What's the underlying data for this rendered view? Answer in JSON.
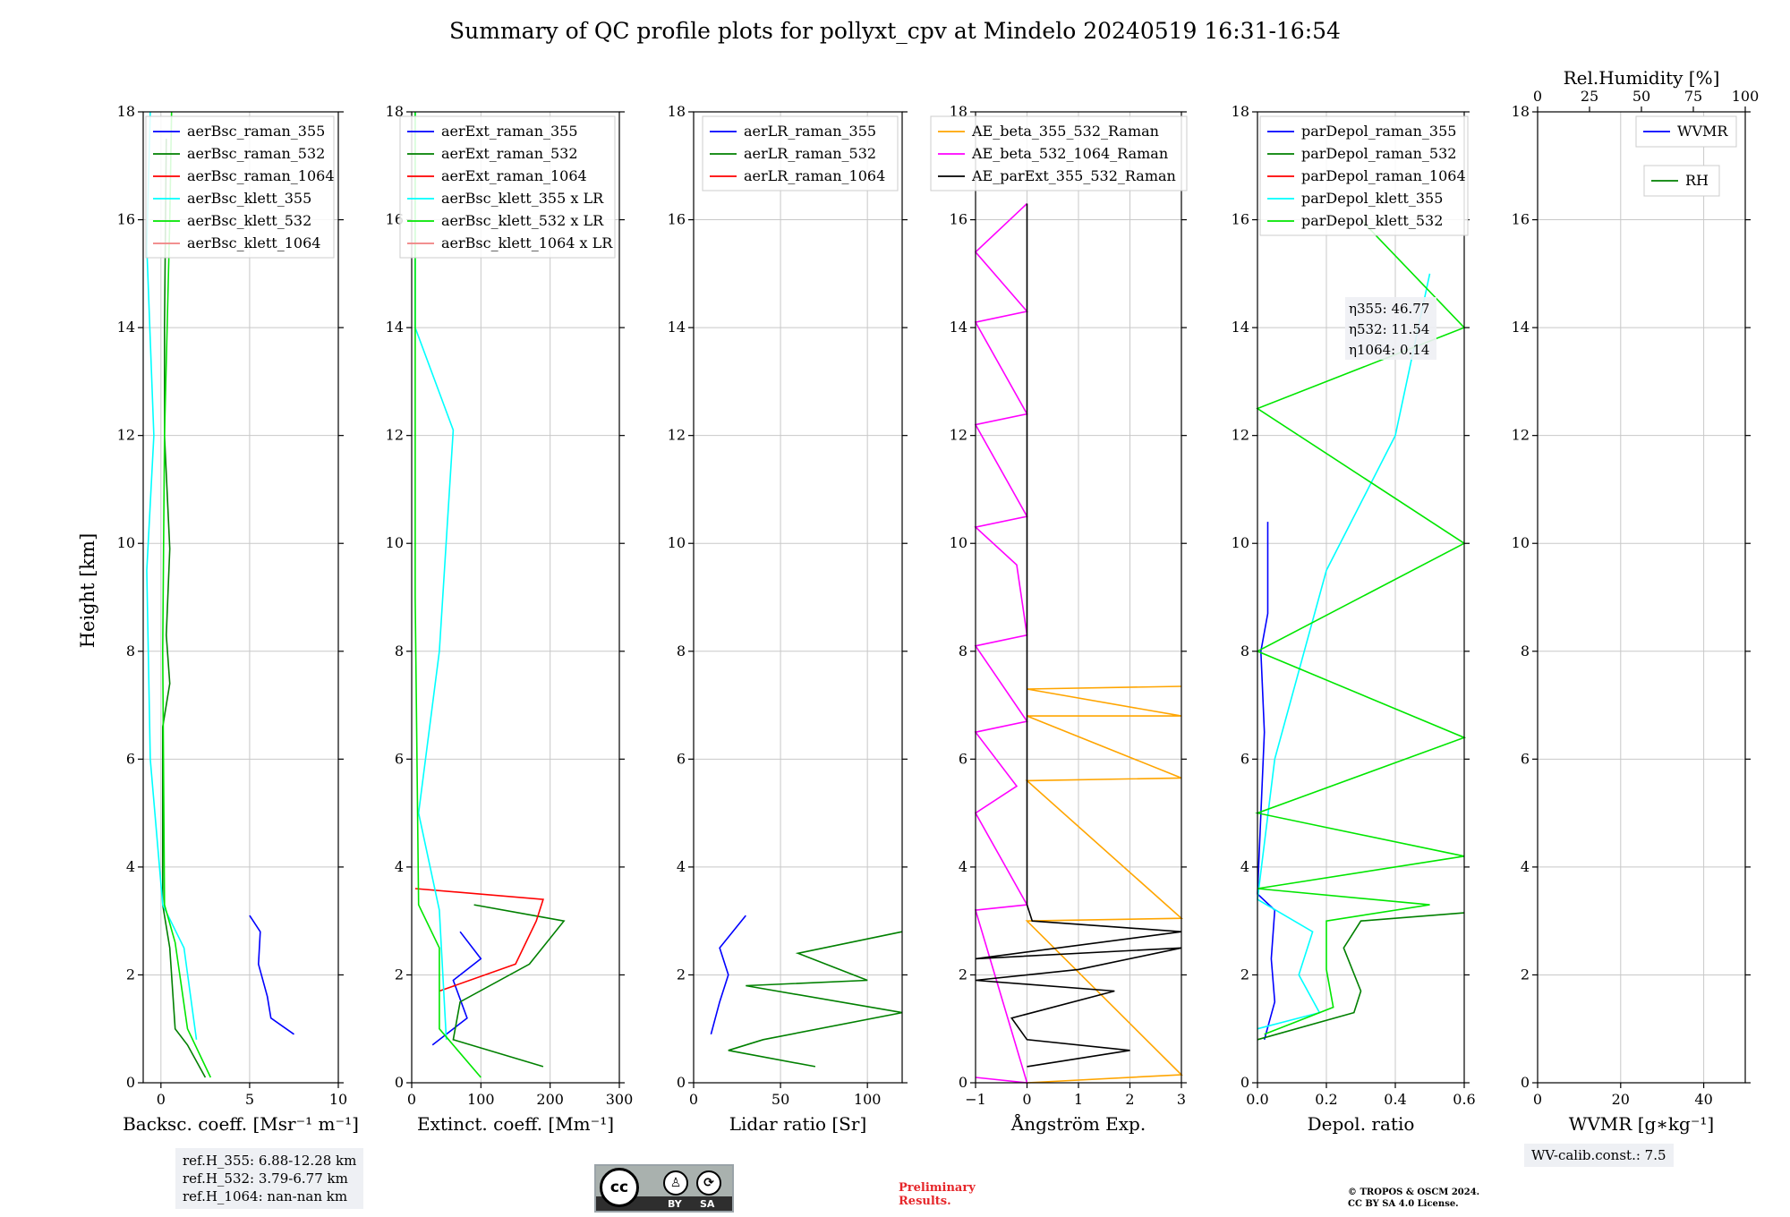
{
  "title": "Summary of QC profile plots for pollyxt_cpv at Mindelo 20240519 16:31-16:54",
  "y_axis_label": "Height [km]",
  "chart_data": [
    {
      "type": "line",
      "panel": "backscatter",
      "xlabel": "Backsc. coeff. [Msr⁻¹ m⁻¹]",
      "xlim": [
        -1,
        10
      ],
      "ylim": [
        0,
        18
      ],
      "xticks": [
        0,
        5,
        10
      ],
      "yticks": [
        0,
        2,
        4,
        6,
        8,
        10,
        12,
        14,
        16,
        18
      ],
      "grid": true,
      "legend_position": "top-right",
      "series": [
        {
          "name": "aerBsc_raman_355",
          "color": "#0000ff",
          "points": [
            [
              5,
              3.1
            ],
            [
              5.6,
              2.8
            ],
            [
              5.5,
              2.2
            ],
            [
              6,
              1.6
            ],
            [
              6.2,
              1.2
            ],
            [
              7.5,
              0.9
            ]
          ]
        },
        {
          "name": "aerBsc_raman_532",
          "color": "#008000",
          "points": [
            [
              2.5,
              0.1
            ],
            [
              1.5,
              0.7
            ],
            [
              0.8,
              1.0
            ],
            [
              0.5,
              2.5
            ],
            [
              0.1,
              3.3
            ],
            [
              0.1,
              6.6
            ],
            [
              0.5,
              7.4
            ],
            [
              0.3,
              8.3
            ],
            [
              0.5,
              9.9
            ],
            [
              0.2,
              12.0
            ],
            [
              0.2,
              14.0
            ],
            [
              0.3,
              17.5
            ]
          ]
        },
        {
          "name": "aerBsc_raman_1064",
          "color": "#ff0000",
          "points": []
        },
        {
          "name": "aerBsc_klett_355",
          "color": "#00ffff",
          "points": [
            [
              2.0,
              0.8
            ],
            [
              1.3,
              2.5
            ],
            [
              0.1,
              3.3
            ],
            [
              -0.6,
              6.0
            ],
            [
              -0.8,
              9.5
            ],
            [
              -0.4,
              12.0
            ],
            [
              -0.8,
              15.5
            ],
            [
              -0.6,
              18.0
            ]
          ]
        },
        {
          "name": "aerBsc_klett_532",
          "color": "#00e600",
          "points": [
            [
              2.8,
              0.1
            ],
            [
              1.5,
              1.0
            ],
            [
              0.8,
              2.6
            ],
            [
              0.2,
              3.3
            ],
            [
              0.1,
              8.0
            ],
            [
              0.2,
              12.0
            ],
            [
              0.5,
              16.0
            ],
            [
              0.6,
              18.0
            ]
          ]
        },
        {
          "name": "aerBsc_klett_1064",
          "color": "#f08080",
          "points": []
        }
      ]
    },
    {
      "type": "line",
      "panel": "extinction",
      "xlabel": "Extinct. coeff. [Mm⁻¹]",
      "xlim": [
        0,
        300
      ],
      "ylim": [
        0,
        18
      ],
      "xticks": [
        0,
        100,
        200,
        300
      ],
      "yticks": [
        0,
        2,
        4,
        6,
        8,
        10,
        12,
        14,
        16,
        18
      ],
      "grid": true,
      "legend_position": "top-right",
      "series": [
        {
          "name": "aerExt_raman_355",
          "color": "#0000ff",
          "points": [
            [
              30,
              0.7
            ],
            [
              80,
              1.2
            ],
            [
              60,
              1.9
            ],
            [
              100,
              2.3
            ],
            [
              70,
              2.8
            ]
          ]
        },
        {
          "name": "aerExt_raman_532",
          "color": "#008000",
          "points": [
            [
              190,
              0.3
            ],
            [
              60,
              0.8
            ],
            [
              70,
              1.5
            ],
            [
              170,
              2.2
            ],
            [
              220,
              3.0
            ],
            [
              90,
              3.3
            ]
          ]
        },
        {
          "name": "aerExt_raman_1064",
          "color": "#ff0000",
          "points": [
            [
              40,
              1.7
            ],
            [
              150,
              2.2
            ],
            [
              180,
              3.0
            ],
            [
              190,
              3.4
            ],
            [
              5,
              3.6
            ]
          ]
        },
        {
          "name": "aerBsc_klett_355 x LR",
          "color": "#00ffff",
          "points": [
            [
              50,
              0.8
            ],
            [
              40,
              3.2
            ],
            [
              10,
              5.0
            ],
            [
              40,
              8.0
            ],
            [
              60,
              12.1
            ],
            [
              5,
              14.0
            ],
            [
              5,
              18.0
            ]
          ]
        },
        {
          "name": "aerBsc_klett_532 x LR",
          "color": "#00e600",
          "points": [
            [
              100,
              0.1
            ],
            [
              40,
              1.0
            ],
            [
              40,
              2.5
            ],
            [
              10,
              3.3
            ],
            [
              5,
              9.0
            ],
            [
              5,
              18.0
            ]
          ]
        },
        {
          "name": "aerBsc_klett_1064 x LR",
          "color": "#f08080",
          "points": []
        }
      ]
    },
    {
      "type": "line",
      "panel": "lidar_ratio",
      "xlabel": "Lidar ratio [Sr]",
      "xlim": [
        0,
        120
      ],
      "ylim": [
        0,
        18
      ],
      "xticks": [
        0,
        50,
        100
      ],
      "yticks": [
        0,
        2,
        4,
        6,
        8,
        10,
        12,
        14,
        16,
        18
      ],
      "grid": true,
      "legend_position": "top-right",
      "series": [
        {
          "name": "aerLR_raman_355",
          "color": "#0000ff",
          "points": [
            [
              10,
              0.9
            ],
            [
              15,
              1.5
            ],
            [
              20,
              2.0
            ],
            [
              15,
              2.5
            ],
            [
              30,
              3.1
            ]
          ]
        },
        {
          "name": "aerLR_raman_532",
          "color": "#008000",
          "points": [
            [
              70,
              0.3
            ],
            [
              20,
              0.6
            ],
            [
              40,
              0.8
            ],
            [
              120,
              1.3
            ],
            [
              30,
              1.8
            ],
            [
              100,
              1.9
            ],
            [
              60,
              2.4
            ],
            [
              120,
              2.8
            ]
          ]
        },
        {
          "name": "aerLR_raman_1064",
          "color": "#ff0000",
          "points": []
        }
      ]
    },
    {
      "type": "line",
      "panel": "angstrom",
      "xlabel": "Ångström Exp.",
      "xlim": [
        -1,
        3
      ],
      "ylim": [
        0,
        18
      ],
      "xticks": [
        -1,
        0,
        1,
        2,
        3
      ],
      "yticks": [
        0,
        2,
        4,
        6,
        8,
        10,
        12,
        14,
        16,
        18
      ],
      "grid": true,
      "legend_position": "top",
      "series": [
        {
          "name": "AE_beta_355_532_Raman",
          "color": "#ffa500",
          "points": [
            [
              0,
              0
            ],
            [
              3,
              0.15
            ],
            [
              0,
              3.0
            ],
            [
              3,
              3.05
            ],
            [
              0,
              5.6
            ],
            [
              3,
              5.65
            ],
            [
              0,
              6.8
            ],
            [
              3,
              6.8
            ],
            [
              0,
              7.3
            ],
            [
              3,
              7.35
            ]
          ]
        },
        {
          "name": "AE_beta_532_1064_Raman",
          "color": "#ff00ff",
          "points": [
            [
              -1,
              0.1
            ],
            [
              0,
              0.0
            ],
            [
              -1,
              3.2
            ],
            [
              0,
              3.3
            ],
            [
              -1,
              5.0
            ],
            [
              -0.2,
              5.5
            ],
            [
              -1,
              6.5
            ],
            [
              0,
              6.7
            ],
            [
              -1,
              8.1
            ],
            [
              0,
              8.3
            ],
            [
              -0.2,
              9.6
            ],
            [
              -1,
              10.3
            ],
            [
              0,
              10.5
            ],
            [
              -1,
              12.2
            ],
            [
              0,
              12.4
            ],
            [
              -1,
              14.1
            ],
            [
              0,
              14.3
            ],
            [
              -1,
              15.4
            ],
            [
              0,
              16.3
            ]
          ]
        },
        {
          "name": "AE_parExt_355_532_Raman",
          "color": "#000000",
          "points": [
            [
              0,
              0.3
            ],
            [
              2,
              0.6
            ],
            [
              0,
              0.8
            ],
            [
              -0.3,
              1.2
            ],
            [
              1.7,
              1.7
            ],
            [
              -1,
              1.9
            ],
            [
              1,
              2.1
            ],
            [
              3,
              2.5
            ],
            [
              -1,
              2.3
            ],
            [
              3,
              2.8
            ],
            [
              0.1,
              3.0
            ],
            [
              0,
              3.3
            ],
            [
              0,
              16.3
            ]
          ]
        }
      ]
    },
    {
      "type": "line",
      "panel": "depol",
      "xlabel": "Depol. ratio",
      "xlim": [
        0,
        0.6
      ],
      "ylim": [
        0,
        18
      ],
      "xticks": [
        0.0,
        0.2,
        0.4,
        0.6
      ],
      "yticks": [
        0,
        2,
        4,
        6,
        8,
        10,
        12,
        14,
        16,
        18
      ],
      "grid": true,
      "legend_position": "top-left",
      "series": [
        {
          "name": "parDepol_raman_355",
          "color": "#0000ff",
          "points": [
            [
              0.02,
              0.8
            ],
            [
              0.05,
              1.5
            ],
            [
              0.04,
              2.3
            ],
            [
              0.05,
              3.2
            ],
            [
              0.0,
              3.5
            ],
            [
              0.02,
              6.5
            ],
            [
              0.01,
              8.0
            ],
            [
              0.03,
              8.7
            ],
            [
              0.03,
              10.4
            ]
          ]
        },
        {
          "name": "parDepol_raman_532",
          "color": "#008000",
          "points": [
            [
              0.0,
              0.8
            ],
            [
              0.28,
              1.3
            ],
            [
              0.3,
              1.7
            ],
            [
              0.25,
              2.5
            ],
            [
              0.3,
              3.0
            ],
            [
              0.6,
              3.15
            ]
          ]
        },
        {
          "name": "parDepol_raman_1064",
          "color": "#ff0000",
          "points": []
        },
        {
          "name": "parDepol_klett_355",
          "color": "#00ffff",
          "points": [
            [
              0.0,
              1.0
            ],
            [
              0.18,
              1.3
            ],
            [
              0.12,
              2.0
            ],
            [
              0.16,
              2.8
            ],
            [
              0.0,
              3.4
            ],
            [
              0.05,
              6.0
            ],
            [
              0.2,
              9.5
            ],
            [
              0.4,
              12.0
            ],
            [
              0.5,
              15.0
            ]
          ]
        },
        {
          "name": "parDepol_klett_532",
          "color": "#00e600",
          "points": [
            [
              0.02,
              0.9
            ],
            [
              0.22,
              1.4
            ],
            [
              0.2,
              2.1
            ],
            [
              0.2,
              3.0
            ],
            [
              0.5,
              3.3
            ],
            [
              0.0,
              3.6
            ],
            [
              0.6,
              4.2
            ],
            [
              0.0,
              5.0
            ],
            [
              0.6,
              6.4
            ],
            [
              0.0,
              8.0
            ],
            [
              0.6,
              10.0
            ],
            [
              0.0,
              12.5
            ],
            [
              0.6,
              14.0
            ],
            [
              0.3,
              16.0
            ]
          ]
        }
      ],
      "annotation": [
        "η355: 46.77",
        "η532: 11.54",
        "η1064: 0.14"
      ]
    },
    {
      "type": "line",
      "panel": "wvmr",
      "xlabel": "WVMR [g∗kg⁻¹]",
      "top_xlabel": "Rel.Humidity [%]",
      "xlim": [
        0,
        50
      ],
      "ylim": [
        0,
        18
      ],
      "xticks": [
        0,
        20,
        40
      ],
      "top_xticks": [
        0,
        25,
        50,
        75,
        100
      ],
      "yticks": [
        0,
        2,
        4,
        6,
        8,
        10,
        12,
        14,
        16,
        18
      ],
      "grid": true,
      "legend_position": "top-right",
      "series": [
        {
          "name": "WVMR",
          "color": "#0000ff",
          "points": []
        },
        {
          "name": "RH",
          "color": "#008000",
          "points": []
        }
      ]
    }
  ],
  "reference_heights": [
    "ref.H_355: 6.88-12.28 km",
    "ref.H_532: 3.79-6.77 km",
    "ref.H_1064: nan-nan km"
  ],
  "wv_calib": "WV-calib.const.: 7.5",
  "cc_license_labels": {
    "cc": "cc",
    "by": "BY",
    "sa": "SA"
  },
  "preliminary": [
    "Preliminary",
    "Results."
  ],
  "license_text": [
    "© TROPOS & OSCM 2024.",
    "CC BY SA 4.0 License."
  ]
}
